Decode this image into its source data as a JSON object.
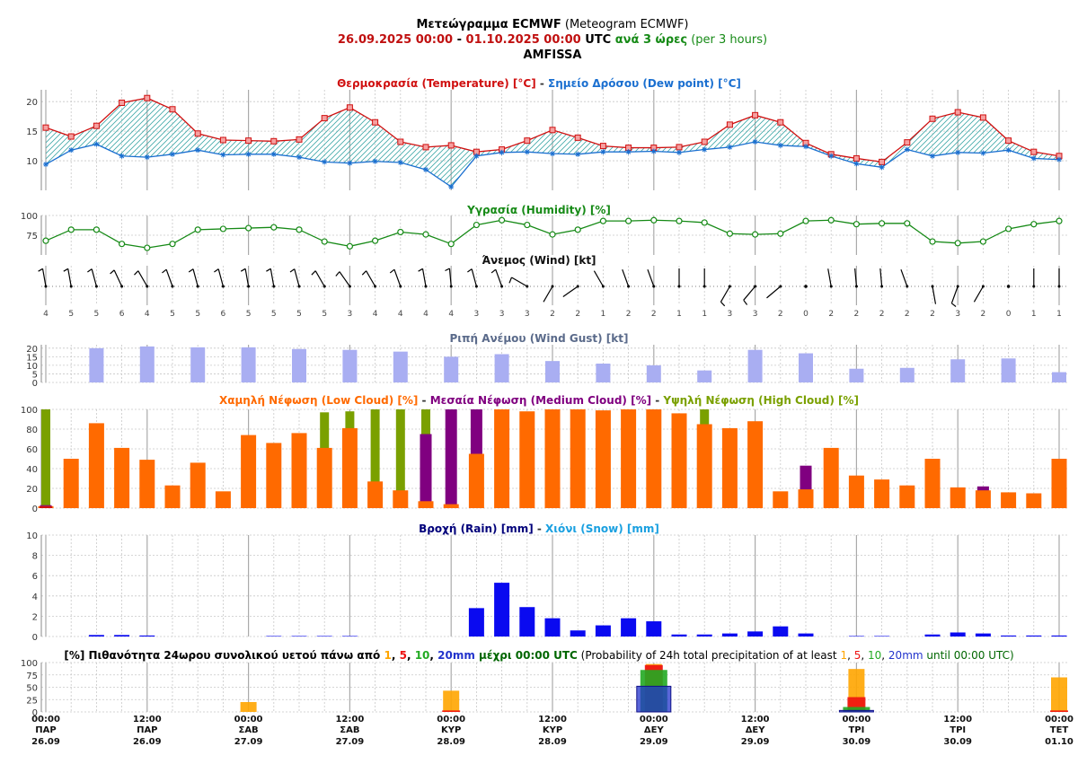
{
  "header": {
    "title_bold": "Μετεώγραμμα ECMWF",
    "title_rest": " (Meteogram ECMWF)",
    "date_from": "26.09.2025 00:00",
    "date_sep": " - ",
    "date_to": "01.10.2025 00:00",
    "utc": " UTC ",
    "step_gr": "ανά 3 ώρες",
    "step_en": " (per 3 hours)",
    "location": "AMFISSA"
  },
  "colors": {
    "temperature": "#d01010",
    "dew_point": "#1a6fd0",
    "humidity": "#168a16",
    "gust": "#a9aef2",
    "gust_title": "#5a6a8a",
    "low_cloud": "#ff6a00",
    "medium_cloud": "#800080",
    "high_cloud": "#7aa000",
    "rain": "#0a0af0",
    "rain_title": "#00007a",
    "snow": "#1aa0e0",
    "p1": "#ffa500",
    "p5": "#ee1111",
    "p10": "#22aa22",
    "p20": "#2233cc"
  },
  "chart_data": [
    {
      "id": "temperature",
      "type": "line",
      "title_parts": [
        "Θερμοκρασία (Temperature) [°C]",
        " - ",
        "Σημείο Δρόσου (Dew point) [°C]"
      ],
      "ylim": [
        5,
        22
      ],
      "yticks": [
        10,
        15,
        20
      ],
      "series": [
        {
          "name": "Θερμοκρασία (Temperature) [°C]",
          "values": [
            15.6,
            14.1,
            15.9,
            19.8,
            20.6,
            18.7,
            14.6,
            13.5,
            13.4,
            13.3,
            13.6,
            17.2,
            19.0,
            16.5,
            13.2,
            12.3,
            12.6,
            11.5,
            11.9,
            13.4,
            15.2,
            13.9,
            12.5,
            12.2,
            12.2,
            12.3,
            13.2,
            16.1,
            17.7,
            16.5,
            13.0,
            11.1,
            10.4,
            9.8,
            13.1,
            17.1,
            18.2,
            17.3,
            13.4,
            11.5,
            10.8
          ]
        },
        {
          "name": "Σημείο Δρόσου (Dew point) [°C]",
          "values": [
            9.4,
            11.8,
            12.8,
            10.8,
            10.6,
            11.1,
            11.8,
            11.0,
            11.1,
            11.1,
            10.6,
            9.8,
            9.6,
            9.9,
            9.7,
            8.5,
            5.6,
            10.8,
            11.4,
            11.5,
            11.2,
            11.1,
            11.5,
            11.5,
            11.6,
            11.4,
            11.9,
            12.3,
            13.2,
            12.6,
            12.4,
            10.8,
            9.5,
            8.9,
            11.9,
            10.8,
            11.4,
            11.3,
            11.8,
            10.4,
            10.2
          ]
        }
      ]
    },
    {
      "id": "humidity",
      "type": "line",
      "title": "Υγρασία (Humidity) [%]",
      "ylim": [
        50,
        100
      ],
      "yticks": [
        75,
        100
      ],
      "values": [
        68,
        82,
        82,
        64,
        59,
        64,
        82,
        83,
        84,
        85,
        82,
        67,
        61,
        68,
        79,
        76,
        64,
        88,
        94,
        88,
        76,
        82,
        93,
        93,
        94,
        93,
        91,
        77,
        76,
        77,
        93,
        94,
        89,
        90,
        90,
        67,
        65,
        67,
        83,
        89,
        93
      ]
    },
    {
      "id": "wind",
      "type": "table",
      "title": "Άνεμος (Wind) [kt]",
      "speed_kt": [
        4,
        5,
        5,
        6,
        4,
        5,
        5,
        6,
        5,
        5,
        5,
        5,
        3,
        4,
        4,
        4,
        4,
        3,
        3,
        3,
        2,
        2,
        1,
        2,
        2,
        1,
        1,
        3,
        3,
        2,
        0,
        2,
        2,
        2,
        2,
        2,
        3,
        2,
        0,
        1,
        1
      ],
      "direction_deg": [
        350,
        350,
        345,
        335,
        330,
        340,
        345,
        345,
        350,
        350,
        345,
        330,
        325,
        330,
        340,
        350,
        355,
        345,
        340,
        300,
        210,
        235,
        330,
        340,
        340,
        0,
        0,
        210,
        220,
        230,
        0,
        350,
        355,
        355,
        340,
        170,
        200,
        210,
        0,
        0,
        0
      ]
    },
    {
      "id": "wind_gust",
      "type": "bar",
      "title": "Ριπή Ανέμου (Wind Gust) [kt]",
      "ylim": [
        0,
        22
      ],
      "yticks": [
        0,
        5,
        10,
        15,
        20
      ],
      "x_index": [
        2,
        4,
        6,
        8,
        10,
        12,
        14,
        16,
        18,
        20,
        22,
        24,
        26,
        28,
        30,
        32,
        34,
        36,
        38,
        40
      ],
      "values": [
        20,
        21,
        20.5,
        20.5,
        19.5,
        19,
        18,
        15,
        16.5,
        12.5,
        11,
        10,
        7,
        19,
        17,
        8,
        8.5,
        13.5,
        14,
        6
      ]
    },
    {
      "id": "clouds",
      "type": "bar",
      "title_parts": [
        "Χαμηλή Νέφωση (Low Cloud) [%]",
        " - ",
        "Μεσαία Νέφωση (Medium Cloud) [%]",
        " - ",
        "Υψηλή Νέφωση (High Cloud) [%]"
      ],
      "ylim": [
        0,
        100
      ],
      "yticks": [
        0,
        20,
        40,
        60,
        80,
        100
      ],
      "series": [
        {
          "name": "Υψηλή Νέφωση (High Cloud) [%]",
          "values": [
            100,
            0,
            0,
            0,
            0,
            0,
            0,
            0,
            0,
            0,
            0,
            97,
            98,
            100,
            100,
            100,
            0,
            0,
            0,
            0,
            0,
            0,
            0,
            0,
            0,
            0,
            100,
            0,
            0,
            0,
            0,
            0,
            0,
            0,
            0,
            0,
            0,
            0,
            0,
            0,
            0
          ]
        },
        {
          "name": "Μεσαία Νέφωση (Medium Cloud) [%]",
          "values": [
            3,
            0,
            0,
            0,
            0,
            0,
            0,
            0,
            0,
            0,
            0,
            0,
            0,
            0,
            0,
            75,
            100,
            100,
            0,
            0,
            100,
            0,
            0,
            0,
            0,
            0,
            0,
            0,
            0,
            0,
            43,
            0,
            0,
            0,
            0,
            0,
            0,
            22,
            0,
            0,
            0
          ]
        },
        {
          "name": "Χαμηλή Νέφωση (Low Cloud) [%]",
          "values": [
            2,
            50,
            86,
            61,
            49,
            23,
            46,
            17,
            74,
            66,
            76,
            61,
            81,
            27,
            18,
            7,
            4,
            55,
            100,
            98,
            100,
            100,
            99,
            100,
            100,
            96,
            85,
            81,
            88,
            17,
            19,
            61,
            33,
            29,
            23,
            50,
            21,
            18,
            16,
            15,
            50
          ]
        }
      ]
    },
    {
      "id": "precipitation",
      "type": "bar",
      "title_parts": [
        "Βροχή (Rain) [mm]",
        " - ",
        "Χιόνι (Snow) [mm]"
      ],
      "ylim": [
        0,
        10
      ],
      "yticks": [
        0,
        2,
        4,
        6,
        8,
        10
      ],
      "series": [
        {
          "name": "Βροχή (Rain) [mm]",
          "values": [
            0,
            0,
            0.15,
            0.15,
            0.1,
            0,
            0,
            0,
            0,
            0.05,
            0.05,
            0.05,
            0.05,
            0,
            0,
            0,
            0,
            2.8,
            5.3,
            2.9,
            1.8,
            0.6,
            1.1,
            1.8,
            1.5,
            0.2,
            0.2,
            0.3,
            0.5,
            1.0,
            0.3,
            0,
            0.05,
            0.05,
            0,
            0.2,
            0.4,
            0.3,
            0.1,
            0.1,
            0.1
          ]
        },
        {
          "name": "Χιόνι (Snow) [mm]",
          "values": [
            0,
            0,
            0,
            0,
            0,
            0,
            0,
            0,
            0,
            0,
            0,
            0,
            0,
            0,
            0,
            0,
            0,
            0,
            0,
            0,
            0,
            0,
            0,
            0,
            0,
            0,
            0,
            0,
            0,
            0,
            0,
            0,
            0,
            0,
            0,
            0,
            0,
            0,
            0,
            0,
            0
          ]
        }
      ]
    },
    {
      "id": "probability",
      "type": "bar",
      "title_parts": [
        {
          "t": "[%] Πιθανότητα 24ωρου συνολικού υετού πάνω από ",
          "c": "#000000",
          "b": true
        },
        {
          "t": "1",
          "c": "#ffa500",
          "b": true
        },
        {
          "t": ", ",
          "c": "#000000",
          "b": true
        },
        {
          "t": "5",
          "c": "#ee1111",
          "b": true
        },
        {
          "t": ", ",
          "c": "#000000",
          "b": true
        },
        {
          "t": "10",
          "c": "#22aa22",
          "b": true
        },
        {
          "t": ", ",
          "c": "#000000",
          "b": true
        },
        {
          "t": "20mm",
          "c": "#2233cc",
          "b": true
        },
        {
          "t": " μέχρι 00:00 UTC",
          "c": "#006600",
          "b": true
        },
        {
          "t": " (Probability of 24h total precipitation of at least ",
          "c": "#000000",
          "b": false
        },
        {
          "t": "1",
          "c": "#ffa500",
          "b": false
        },
        {
          "t": ", ",
          "c": "#000000",
          "b": false
        },
        {
          "t": "5",
          "c": "#ee1111",
          "b": false
        },
        {
          "t": ", ",
          "c": "#000000",
          "b": false
        },
        {
          "t": "10",
          "c": "#22aa22",
          "b": false
        },
        {
          "t": ", ",
          "c": "#000000",
          "b": false
        },
        {
          "t": "20mm",
          "c": "#2233cc",
          "b": false
        },
        {
          "t": " until 00:00 UTC)",
          "c": "#006600",
          "b": false
        }
      ],
      "ylim": [
        0,
        100
      ],
      "yticks": [
        0,
        25,
        50,
        75,
        100
      ],
      "x_index": [
        8,
        16,
        24,
        32,
        40
      ],
      "series": [
        {
          "name": "1",
          "values": [
            20,
            43,
            97,
            87,
            70
          ]
        },
        {
          "name": "5",
          "values": [
            0,
            3,
            95,
            30,
            3
          ]
        },
        {
          "name": "10",
          "values": [
            0,
            0,
            85,
            10,
            0
          ]
        },
        {
          "name": "20mm",
          "values": [
            0,
            0,
            52,
            3,
            0
          ]
        }
      ]
    }
  ],
  "x_axis": {
    "ticks": [
      {
        "index": 0,
        "time": "00:00",
        "day": "ΠΑΡ",
        "date": "26.09"
      },
      {
        "index": 4,
        "time": "12:00",
        "day": "ΠΑΡ",
        "date": "26.09"
      },
      {
        "index": 8,
        "time": "00:00",
        "day": "ΣΑΒ",
        "date": "27.09"
      },
      {
        "index": 12,
        "time": "12:00",
        "day": "ΣΑΒ",
        "date": "27.09"
      },
      {
        "index": 16,
        "time": "00:00",
        "day": "ΚΥΡ",
        "date": "28.09"
      },
      {
        "index": 20,
        "time": "12:00",
        "day": "ΚΥΡ",
        "date": "28.09"
      },
      {
        "index": 24,
        "time": "00:00",
        "day": "ΔΕΥ",
        "date": "29.09"
      },
      {
        "index": 28,
        "time": "12:00",
        "day": "ΔΕΥ",
        "date": "29.09"
      },
      {
        "index": 32,
        "time": "00:00",
        "day": "ΤΡΙ",
        "date": "30.09"
      },
      {
        "index": 36,
        "time": "12:00",
        "day": "ΤΡΙ",
        "date": "30.09"
      },
      {
        "index": 40,
        "time": "00:00",
        "day": "ΤΕΤ",
        "date": "01.10"
      }
    ]
  }
}
